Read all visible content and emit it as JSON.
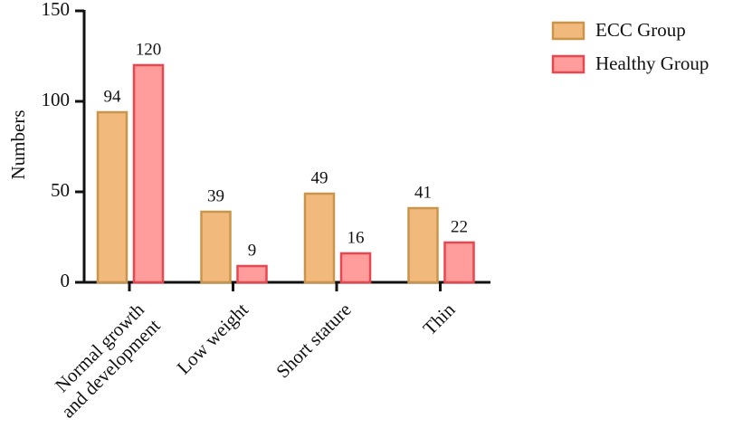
{
  "chart_data": {
    "type": "bar",
    "y_label": "Numbers",
    "categories": [
      "Normal growth\nand development",
      "Low weight",
      "Short stature",
      "Thin"
    ],
    "series": [
      {
        "name": "ECC Group",
        "color": "#f2b97c",
        "edge": "#c9954a",
        "values": [
          94,
          39,
          49,
          41
        ]
      },
      {
        "name": "Healthy Group",
        "color": "#ff9d9d",
        "edge": "#e8474f",
        "values": [
          120,
          9,
          16,
          22
        ]
      }
    ],
    "ylim": [
      0,
      150
    ],
    "yticks": [
      0,
      50,
      100,
      150
    ],
    "legend": "upper right"
  }
}
